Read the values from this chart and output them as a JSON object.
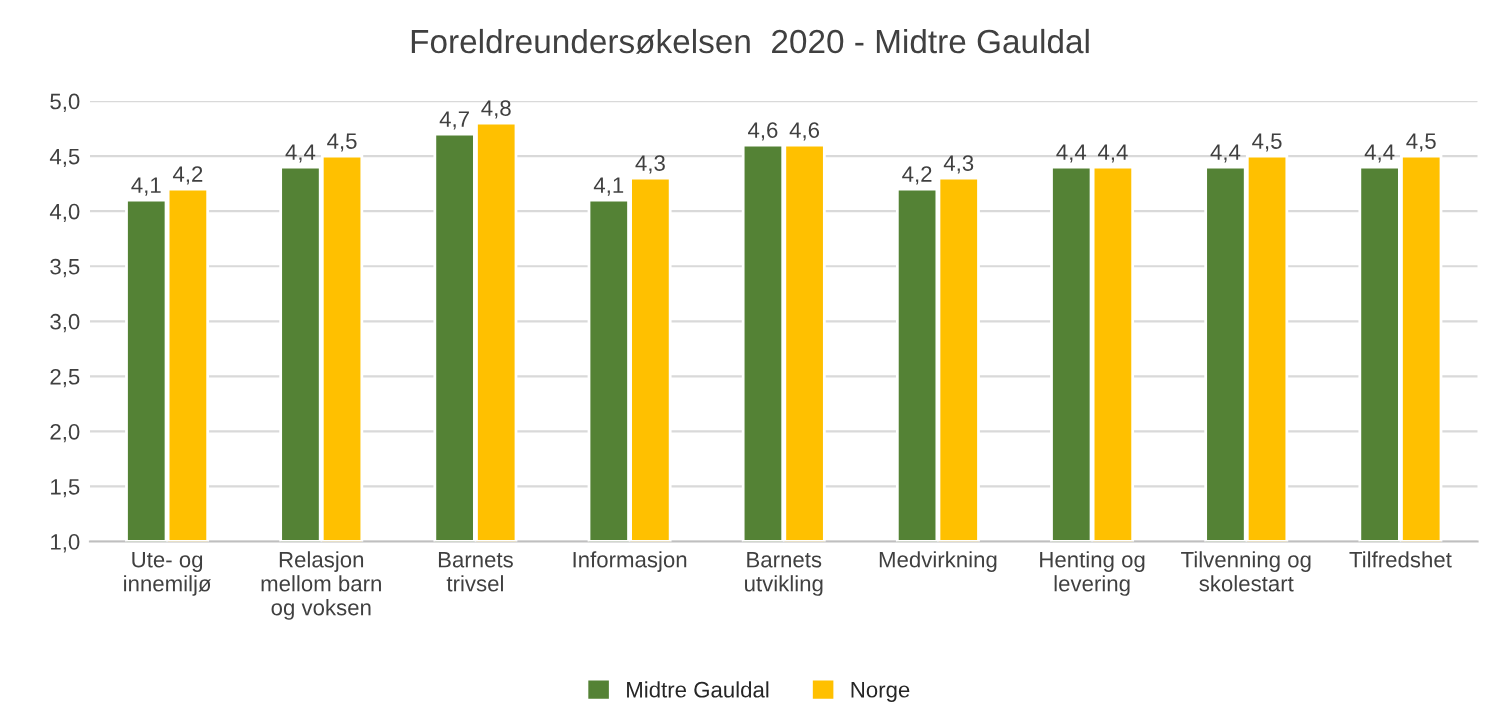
{
  "chart_data": {
    "type": "bar",
    "title": "Foreldreundersøkelsen  2020 - Midtre Gauldal",
    "categories": [
      "Ute- og\ninnemiljø",
      "Relasjon\nmellom barn\nog voksen",
      "Barnets\ntrivsel",
      "Informasjon",
      "Barnets\nutvikling",
      "Medvirkning",
      "Henting og\nlevering",
      "Tilvenning og\nskolestart",
      "Tilfredshet"
    ],
    "series": [
      {
        "name": "Midtre Gauldal",
        "color": "#548235",
        "values": [
          4.1,
          4.4,
          4.7,
          4.1,
          4.6,
          4.2,
          4.4,
          4.4,
          4.4
        ],
        "value_labels": [
          "4,1",
          "4,4",
          "4,7",
          "4,1",
          "4,6",
          "4,2",
          "4,4",
          "4,4",
          "4,4"
        ]
      },
      {
        "name": "Norge",
        "color": "#ffc000",
        "values": [
          4.2,
          4.5,
          4.8,
          4.3,
          4.6,
          4.3,
          4.4,
          4.5,
          4.5
        ],
        "value_labels": [
          "4,2",
          "4,5",
          "4,8",
          "4,3",
          "4,6",
          "4,3",
          "4,4",
          "4,5",
          "4,5"
        ]
      }
    ],
    "ylim": [
      1,
      5
    ],
    "yticks": [
      {
        "value": 1,
        "label": "1,0"
      },
      {
        "value": 1.5,
        "label": "1,5"
      },
      {
        "value": 2,
        "label": "2,0"
      },
      {
        "value": 2.5,
        "label": "2,5"
      },
      {
        "value": 3,
        "label": "3,0"
      },
      {
        "value": 3.5,
        "label": "3,5"
      },
      {
        "value": 4,
        "label": "4,0"
      },
      {
        "value": 4.5,
        "label": "4,5"
      },
      {
        "value": 5,
        "label": "5,0"
      }
    ],
    "grid": "y",
    "legend": "bottom"
  }
}
